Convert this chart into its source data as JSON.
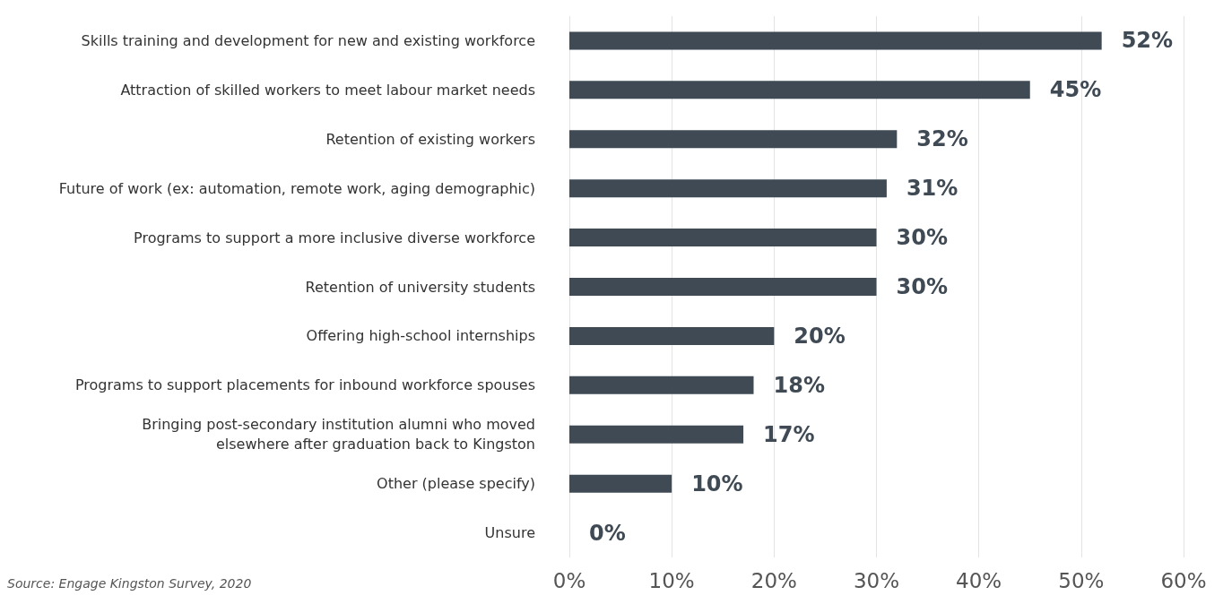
{
  "chart_data": {
    "type": "bar",
    "orientation": "horizontal",
    "categories": [
      "Skills training and development for new and existing workforce",
      "Attraction of skilled workers to meet labour market needs",
      "Retention of existing workers",
      "Future of work (ex: automation, remote work, aging demographic)",
      "Programs to support a more inclusive diverse workforce",
      "Retention of university students",
      "Offering high-school internships",
      "Programs to support placements for inbound workforce spouses",
      "Bringing post-secondary institution alumni who moved\nelsewhere after graduation back to Kingston",
      "Other (please specify)",
      "Unsure"
    ],
    "values": [
      52,
      45,
      32,
      31,
      30,
      30,
      20,
      18,
      17,
      10,
      0
    ],
    "value_labels": [
      "52%",
      "45%",
      "32%",
      "31%",
      "30%",
      "30%",
      "20%",
      "18%",
      "17%",
      "10%",
      "0%"
    ],
    "color": "#3f4a54",
    "xlim": [
      0,
      60
    ],
    "xticks": [
      {
        "value": 0,
        "label": "0%"
      },
      {
        "value": 10,
        "label": "10%"
      },
      {
        "value": 20,
        "label": "20%"
      },
      {
        "value": 30,
        "label": "30%"
      },
      {
        "value": 40,
        "label": "40%"
      },
      {
        "value": 50,
        "label": "50%"
      },
      {
        "value": 60,
        "label": "60%"
      }
    ],
    "grid": "x",
    "annotations": [
      "Source: Engage Kingston Survey, 2020"
    ]
  }
}
